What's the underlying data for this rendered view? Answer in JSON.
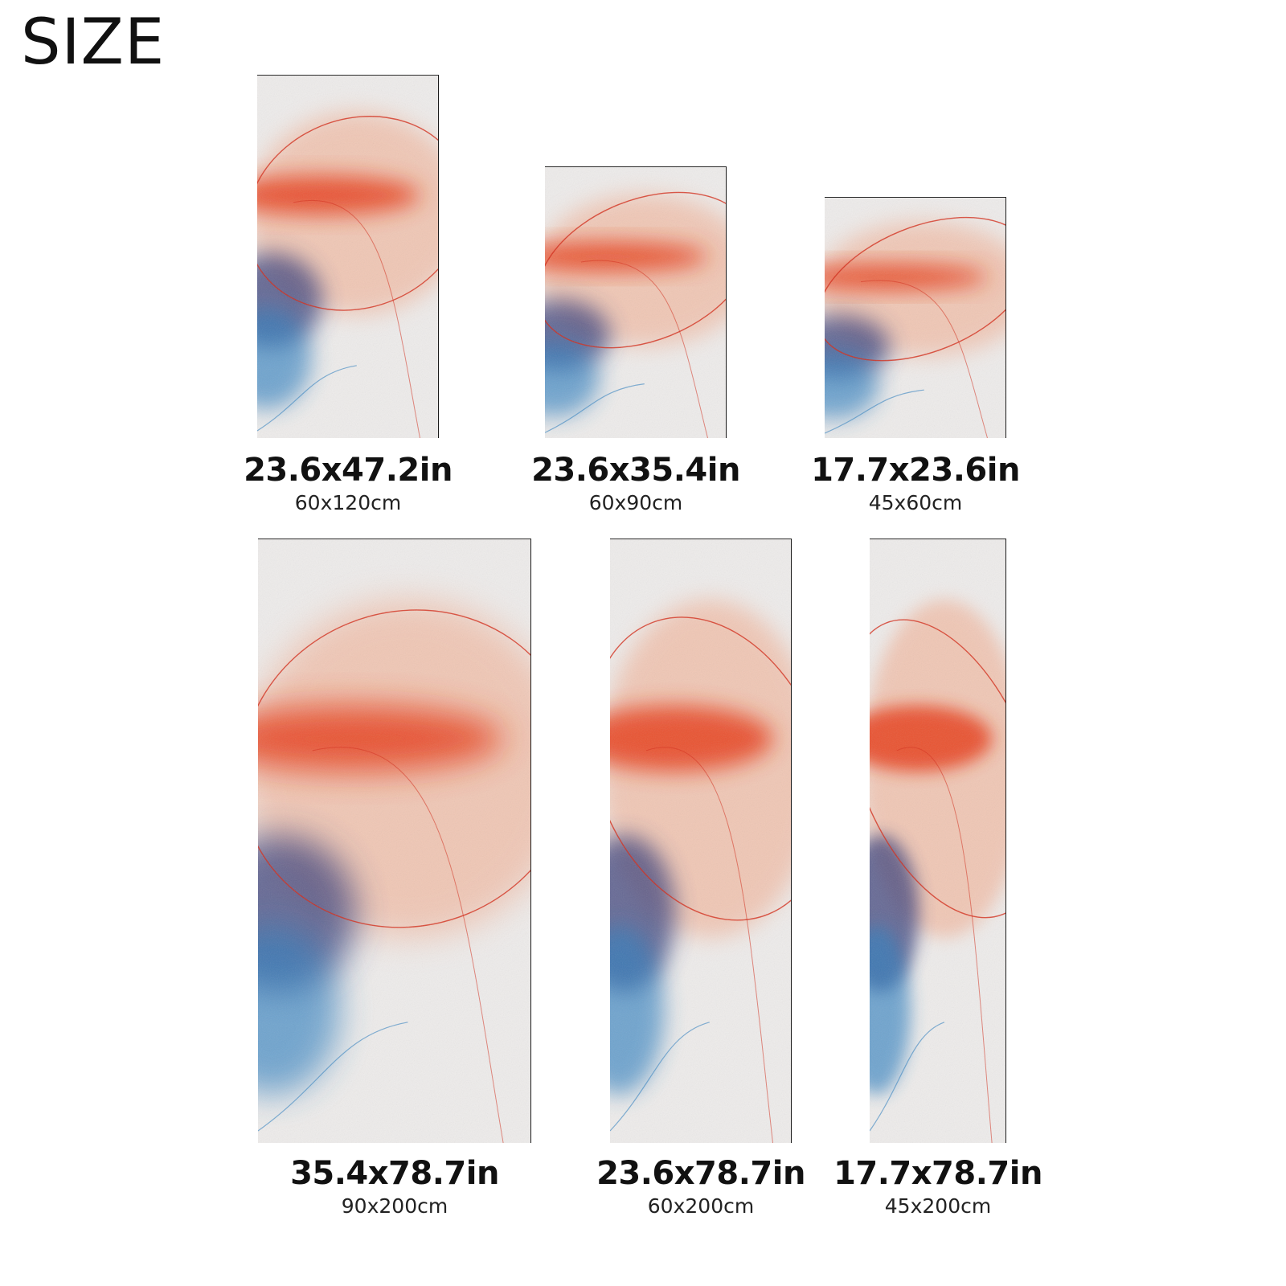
{
  "heading": "SIZE",
  "artwork_colors": {
    "paper": "#eeeceb",
    "red": "#e8401f",
    "peach": "#f2a98a",
    "navy": "#3a3f7a",
    "blue": "#2d7fc0",
    "line_red": "#d42a18"
  },
  "sizes": [
    {
      "inches": "23.6x47.2in",
      "cm": "60x120cm"
    },
    {
      "inches": "23.6x35.4in",
      "cm": "60x90cm"
    },
    {
      "inches": "17.7x23.6in",
      "cm": "45x60cm"
    },
    {
      "inches": "35.4x78.7in",
      "cm": "90x200cm"
    },
    {
      "inches": "23.6x78.7in",
      "cm": "60x200cm"
    },
    {
      "inches": "17.7x78.7in",
      "cm": "45x200cm"
    }
  ]
}
